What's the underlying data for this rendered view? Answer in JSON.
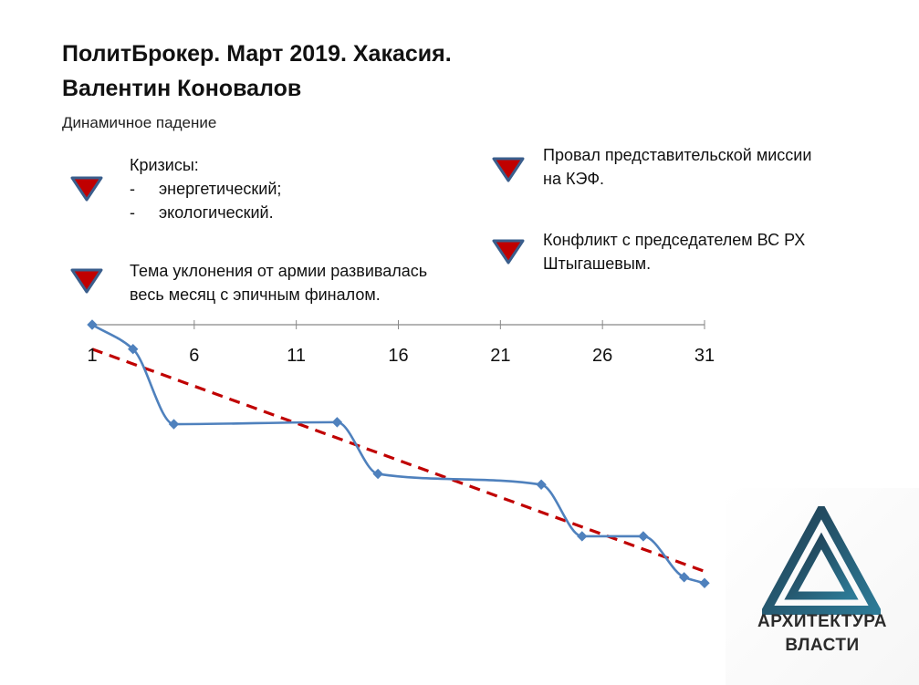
{
  "header": {
    "title_line1": "ПолитБрокер. Март 2019. Хакасия.",
    "title_line2": "Валентин Коновалов",
    "subtitle": "Динамичное падение"
  },
  "notes": {
    "crises": {
      "heading": "Кризисы:",
      "items": [
        "энергетический;",
        "экологический."
      ],
      "dash": "-"
    },
    "army": {
      "line1": "Тема уклонения от армии развивалась",
      "line2": "весь месяц с эпичным финалом."
    },
    "kef": {
      "line1": "Провал представительской миссии",
      "line2": "на КЭФ."
    },
    "conflict": {
      "line1": "Конфликт с председателем ВС РХ",
      "line2": "Штыгашевым."
    },
    "marker_icon": "red-down-triangle-icon",
    "marker_color": "#c00000",
    "marker_border": "#3a5e8c"
  },
  "chart_data": {
    "type": "line",
    "x": [
      1,
      3,
      5,
      13,
      15,
      23,
      25,
      28,
      30,
      31
    ],
    "y": [
      0,
      -1.25,
      -5.1,
      -5.0,
      -7.65,
      -8.2,
      -10.85,
      -10.85,
      -12.95,
      -13.25
    ],
    "xlim": [
      1,
      31
    ],
    "ylim": [
      -13.8,
      0
    ],
    "xticks": [
      1,
      6,
      11,
      16,
      21,
      26,
      31
    ],
    "trendline": {
      "from": [
        1,
        -1.25
      ],
      "to": [
        31,
        -12.65
      ]
    },
    "colors": {
      "series": "#4f81bd",
      "trend": "#c00000",
      "axis": "#888888"
    },
    "grid": false,
    "legend": "none",
    "y_axis_labels": "none",
    "smooth": true,
    "markers": "diamond"
  },
  "logo": {
    "line1": "АРХИТЕКТУРА",
    "line2": "ВЛАСТИ",
    "icon": "triangle-logo-icon",
    "color_dark": "#1f3a4d",
    "color_light": "#2d6e8a"
  }
}
